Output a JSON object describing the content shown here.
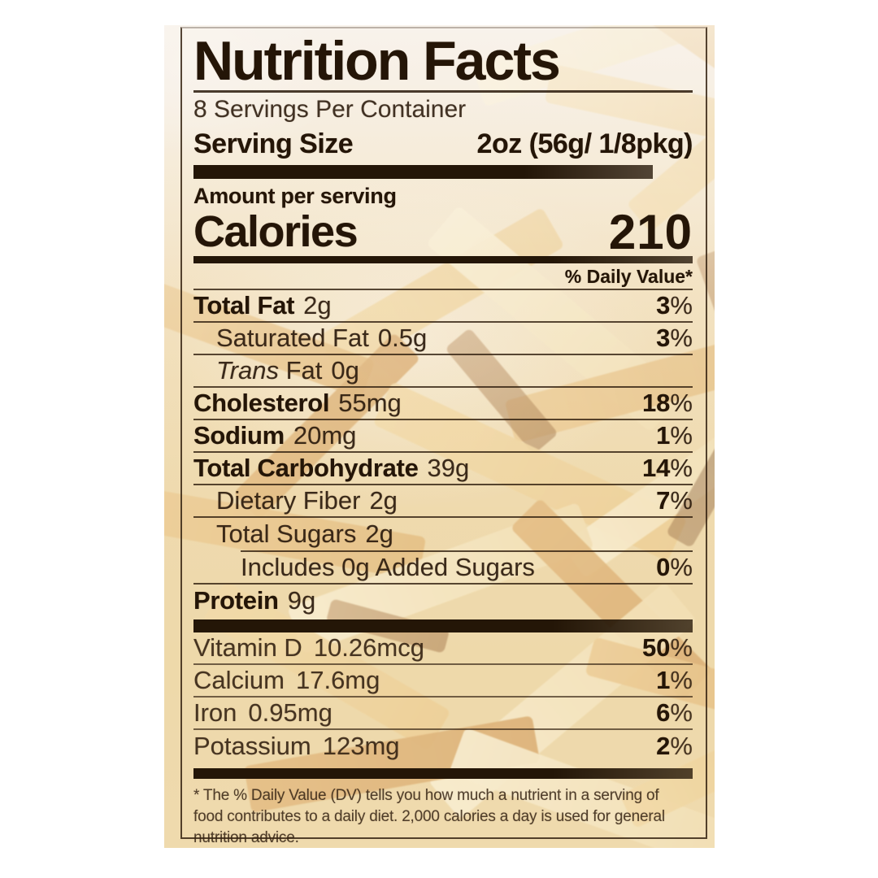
{
  "label": {
    "title": "Nutrition Facts",
    "servings_per_container": "8 Servings Per Container",
    "serving_size_label": "Serving Size",
    "serving_size_value": "2oz (56g/ 1/8pkg)",
    "amount_per_serving": "Amount per serving",
    "calories_label": "Calories",
    "calories_value": "210",
    "daily_value_header": "% Daily Value*",
    "nutrients": [
      {
        "name": "Total Fat",
        "amount": "2g",
        "dv": "3%",
        "bold": true,
        "indent": 0
      },
      {
        "name": "Saturated Fat",
        "amount": "0.5g",
        "dv": "3%",
        "bold": false,
        "indent": 1
      },
      {
        "name": "Fat",
        "italic_prefix": "Trans",
        "amount": "0g",
        "dv": "",
        "bold": false,
        "indent": 1
      },
      {
        "name": "Cholesterol",
        "amount": "55mg",
        "dv": "18%",
        "bold": true,
        "indent": 0
      },
      {
        "name": "Sodium",
        "amount": "20mg",
        "dv": "1%",
        "bold": true,
        "indent": 0
      },
      {
        "name": "Total Carbohydrate",
        "amount": "39g",
        "dv": "14%",
        "bold": true,
        "indent": 0
      },
      {
        "name": "Dietary Fiber",
        "amount": "2g",
        "dv": "7%",
        "bold": false,
        "indent": 1
      },
      {
        "name": "Total Sugars",
        "amount": "2g",
        "dv": "",
        "bold": false,
        "indent": 1,
        "after_rule": "indent"
      },
      {
        "name": "Includes 0g Added Sugars",
        "amount": "",
        "dv": "0%",
        "bold": false,
        "indent": 2
      },
      {
        "name": "Protein",
        "amount": "9g",
        "dv": "",
        "bold": true,
        "indent": 0,
        "after_rule": "none"
      }
    ],
    "vitamins": [
      {
        "name": "Vitamin D",
        "amount": "10.26mcg",
        "dv": "50%"
      },
      {
        "name": "Calcium",
        "amount": "17.6mg",
        "dv": "1%"
      },
      {
        "name": "Iron",
        "amount": "0.95mg",
        "dv": "6%"
      },
      {
        "name": "Potassium",
        "amount": "123mg",
        "dv": "2%"
      }
    ],
    "footnote": "* The % Daily Value (DV) tells you how much a nutrient in a serving of food contributes to a daily diet. 2,000 calories a day is used for general nutrition advice."
  },
  "colors": {
    "label_ink": "#241507",
    "bar_color": "#241607",
    "package_cream": "#f2e5c9",
    "noodle_gold": "#eccf97",
    "page_background": "#ffffff"
  }
}
